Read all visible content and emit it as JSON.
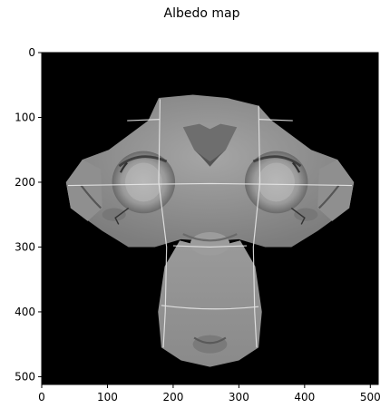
{
  "title": "Albedo map",
  "chart_data": {
    "type": "heatmap",
    "title": "Albedo map",
    "xlabel": "",
    "ylabel": "",
    "xlim": [
      0,
      512
    ],
    "ylim": [
      512,
      0
    ],
    "x_ticks": [
      0,
      100,
      200,
      300,
      400,
      500
    ],
    "y_ticks": [
      0,
      100,
      200,
      300,
      400,
      500
    ],
    "colormap": "gray",
    "background_color": "#000000",
    "content": "grayscale albedo texture of a monkey head mesh on black background"
  }
}
